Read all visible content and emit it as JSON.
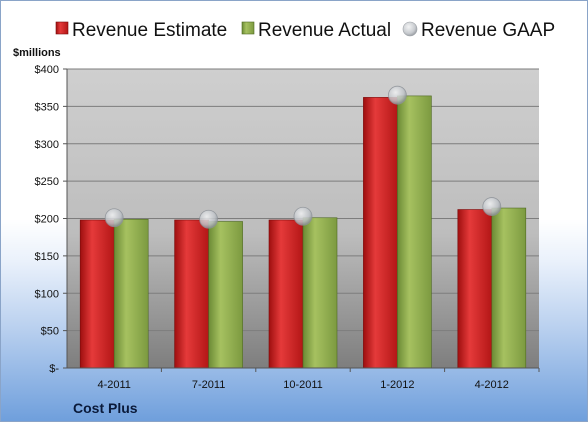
{
  "chart_data": {
    "type": "bar",
    "categories": [
      "4-2011",
      "7-2011",
      "10-2011",
      "1-2012",
      "4-2012"
    ],
    "series": [
      {
        "name": "Revenue Estimate",
        "values": [
          198,
          198,
          198,
          362,
          212
        ],
        "color": "#cc1f1f",
        "mark": "bar"
      },
      {
        "name": "Revenue Actual",
        "values": [
          199,
          196,
          201,
          364,
          214
        ],
        "color": "#8aa84a",
        "mark": "bar"
      },
      {
        "name": "Revenue GAAP",
        "values": [
          201,
          199,
          203,
          365,
          216
        ],
        "color": "#bfc3c8",
        "mark": "marker"
      }
    ],
    "ylabel": "$millions",
    "ylim": [
      0,
      400
    ],
    "yticks": [
      0,
      50,
      100,
      150,
      200,
      250,
      300,
      350,
      400
    ],
    "ytick_labels": [
      "$-",
      "$50",
      "$100",
      "$150",
      "$200",
      "$250",
      "$300",
      "$350",
      "$400"
    ],
    "grid": true,
    "legend_position": "top",
    "company": "Cost Plus"
  }
}
